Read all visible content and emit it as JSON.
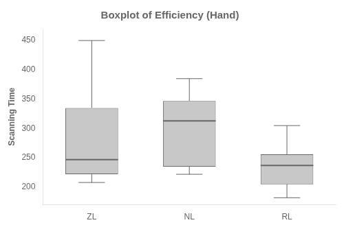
{
  "chart_data": {
    "type": "box",
    "title": "Boxplot of Efficiency (Hand)",
    "ylabel": "Scanning Time",
    "categories": [
      "ZL",
      "NL",
      "RL"
    ],
    "boxes": [
      {
        "q1": 222,
        "median": 247,
        "q3": 335,
        "whislo": 208,
        "whishi": 450
      },
      {
        "q1": 235,
        "median": 313,
        "q3": 347,
        "whislo": 222,
        "whishi": 385
      },
      {
        "q1": 205,
        "median": 237,
        "q3": 256,
        "whislo": 182,
        "whishi": 305
      }
    ],
    "color": "#c8c8c8",
    "ylim": [
      170,
      470
    ],
    "yticks": [
      200,
      250,
      300,
      350,
      400,
      450
    ],
    "grid": false
  }
}
